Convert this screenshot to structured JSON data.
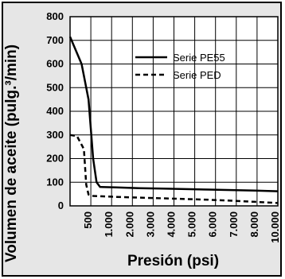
{
  "chart_data": {
    "type": "line",
    "title": "",
    "xlabel": "Presión (psi)",
    "ylabel": "Volumen de aceite (pulg.³/min)",
    "ylim": [
      0,
      800
    ],
    "yticks": [
      "0",
      "100",
      "200",
      "300",
      "400",
      "500",
      "600",
      "700",
      "800"
    ],
    "xticks": [
      "500",
      "1.000",
      "2.000",
      "3.000",
      "4.000",
      "5.000",
      "6.000",
      "7.000",
      "8.000",
      "10.000"
    ],
    "grid": true,
    "legend_position": "top-right",
    "series": [
      {
        "name": "Serie PE55",
        "style": "solid",
        "points": [
          [
            0,
            715
          ],
          [
            0.5,
            600
          ],
          [
            0.8,
            450
          ],
          [
            1.0,
            200
          ],
          [
            1.15,
            100
          ],
          [
            1.3,
            80
          ],
          [
            2.0,
            78
          ],
          [
            3.0,
            75
          ],
          [
            4.0,
            73
          ],
          [
            5.0,
            71
          ],
          [
            6.0,
            69
          ],
          [
            7.0,
            67
          ],
          [
            8.0,
            65
          ],
          [
            9.0,
            62
          ]
        ]
      },
      {
        "name": "Serie PED",
        "style": "dashed",
        "points": [
          [
            0,
            300
          ],
          [
            0.3,
            295
          ],
          [
            0.6,
            240
          ],
          [
            0.7,
            90
          ],
          [
            0.8,
            48
          ],
          [
            1.0,
            42
          ],
          [
            1.5,
            40
          ],
          [
            2.0,
            38
          ],
          [
            3.0,
            35
          ],
          [
            4.0,
            32
          ],
          [
            5.0,
            29
          ],
          [
            6.0,
            26
          ],
          [
            7.0,
            22
          ],
          [
            8.0,
            17
          ],
          [
            9.0,
            12
          ]
        ]
      }
    ]
  }
}
